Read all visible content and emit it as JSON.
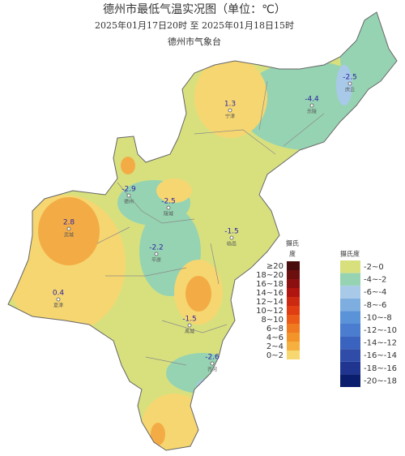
{
  "header": {
    "title": "德州市最低气温实况图（单位：℃）",
    "subtitle": "2025年01月17日20时  至  2025年01月18日15时",
    "source": "德州市气象台"
  },
  "stations": [
    {
      "value": 1.3,
      "name": "宁津"
    },
    {
      "value": -4.4,
      "name": "乐陵"
    },
    {
      "value": -2.5,
      "name": "庆云"
    },
    {
      "value": -2.9,
      "name": "德州"
    },
    {
      "value": -2.5,
      "name": "陵城"
    },
    {
      "value": 2.8,
      "name": "武城"
    },
    {
      "value": -1.5,
      "name": "临邑"
    },
    {
      "value": -2.2,
      "name": "平原"
    },
    {
      "value": 0.4,
      "name": "夏津"
    },
    {
      "value": -1.5,
      "name": "禹城"
    },
    {
      "value": -2.6,
      "name": "齐河"
    }
  ],
  "warm_legend": {
    "title_top": "摄氏",
    "title_bottom": "度",
    "items": [
      {
        "label": "≥20",
        "color": "#4a0d0d"
      },
      {
        "label": "18~20",
        "color": "#6b0f0f"
      },
      {
        "label": "16~18",
        "color": "#8c1010"
      },
      {
        "label": "14~16",
        "color": "#b0160f"
      },
      {
        "label": "12~14",
        "color": "#cc2a10"
      },
      {
        "label": "10~12",
        "color": "#e03d12"
      },
      {
        "label": "8~10",
        "color": "#eb5a17"
      },
      {
        "label": "6~8",
        "color": "#f07a1f"
      },
      {
        "label": "4~6",
        "color": "#f39428"
      },
      {
        "label": "2~4",
        "color": "#f5b040"
      },
      {
        "label": "0~2",
        "color": "#f7d870"
      }
    ]
  },
  "cold_legend": {
    "title": "摄氏度",
    "items": [
      {
        "label": "-2~0",
        "color": "#d8e07e"
      },
      {
        "label": "-4~-2",
        "color": "#96d3b2"
      },
      {
        "label": "-6~-4",
        "color": "#a8c9e8"
      },
      {
        "label": "-8~-6",
        "color": "#7eaee0"
      },
      {
        "label": "-10~-8",
        "color": "#5b93d8"
      },
      {
        "label": "-12~-10",
        "color": "#4a7ccf"
      },
      {
        "label": "-14~-12",
        "color": "#3a63c0"
      },
      {
        "label": "-16~-14",
        "color": "#2e4ca8"
      },
      {
        "label": "-18~-16",
        "color": "#1f3590"
      },
      {
        "label": "-20~-18",
        "color": "#0b1e6e"
      }
    ]
  }
}
